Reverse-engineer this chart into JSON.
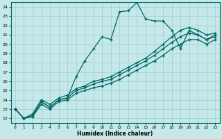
{
  "xlabel": "Humidex (Indice chaleur)",
  "ylabel": "",
  "background_color": "#c5e8e8",
  "grid_color": "#a0cccc",
  "line_color": "#006868",
  "xlim": [
    -0.5,
    23.5
  ],
  "ylim": [
    11.5,
    24.5
  ],
  "xticks": [
    0,
    1,
    2,
    3,
    4,
    5,
    6,
    7,
    8,
    9,
    10,
    11,
    12,
    13,
    14,
    15,
    16,
    17,
    18,
    19,
    20,
    21,
    22,
    23
  ],
  "yticks": [
    12,
    13,
    14,
    15,
    16,
    17,
    18,
    19,
    20,
    21,
    22,
    23,
    24
  ],
  "series": [
    {
      "x": [
        0,
        1,
        2,
        3,
        4,
        5,
        6,
        7,
        8,
        9,
        10,
        11,
        12,
        13,
        14,
        15,
        16,
        17,
        18,
        19,
        20,
        21,
        22,
        23
      ],
      "y": [
        13.0,
        12.0,
        12.2,
        13.8,
        13.2,
        14.0,
        14.2,
        16.5,
        18.2,
        19.5,
        20.8,
        20.5,
        23.5,
        23.6,
        24.5,
        22.7,
        22.5,
        22.5,
        21.5,
        19.5,
        21.5,
        21.0,
        20.5,
        21.0
      ]
    },
    {
      "x": [
        0,
        1,
        2,
        3,
        4,
        5,
        6,
        7,
        8,
        9,
        10,
        11,
        12,
        13,
        14,
        15,
        16,
        17,
        18,
        19,
        20,
        21,
        22,
        23
      ],
      "y": [
        13.0,
        12.0,
        12.5,
        14.0,
        13.5,
        14.2,
        14.5,
        15.2,
        15.5,
        16.0,
        16.2,
        16.5,
        17.0,
        17.5,
        18.0,
        18.5,
        19.2,
        20.0,
        20.8,
        21.5,
        21.8,
        21.5,
        21.0,
        21.2
      ]
    },
    {
      "x": [
        0,
        1,
        2,
        3,
        4,
        5,
        6,
        7,
        8,
        9,
        10,
        11,
        12,
        13,
        14,
        15,
        16,
        17,
        18,
        19,
        20,
        21,
        22,
        23
      ],
      "y": [
        13.0,
        12.0,
        12.3,
        13.8,
        13.2,
        14.0,
        14.2,
        15.0,
        15.3,
        15.7,
        16.0,
        16.2,
        16.7,
        17.2,
        17.7,
        18.2,
        18.8,
        19.5,
        20.2,
        20.8,
        21.2,
        21.0,
        20.5,
        20.8
      ]
    },
    {
      "x": [
        0,
        1,
        2,
        3,
        4,
        5,
        6,
        7,
        8,
        9,
        10,
        11,
        12,
        13,
        14,
        15,
        16,
        17,
        18,
        19,
        20,
        21,
        22,
        23
      ],
      "y": [
        13.0,
        12.0,
        12.2,
        13.5,
        13.0,
        13.8,
        14.0,
        14.7,
        15.0,
        15.3,
        15.5,
        15.8,
        16.2,
        16.7,
        17.2,
        17.7,
        18.2,
        18.8,
        19.5,
        20.0,
        20.5,
        20.5,
        20.0,
        20.5
      ]
    }
  ]
}
